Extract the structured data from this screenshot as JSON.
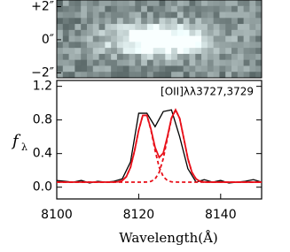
{
  "chart_data": {
    "type": "line",
    "annotation": "[OII]λλ3727,3729",
    "xlabel": "Wavelength(Å)",
    "ylabel": "f",
    "ylabel_sub": "λ",
    "xlim": [
      8100,
      8150
    ],
    "xticks": [
      8100,
      8120,
      8140
    ],
    "ylim": [
      -0.14,
      1.27
    ],
    "yticks": [
      {
        "value": 0,
        "label": "0.0"
      },
      0.4,
      0.8,
      1.2
    ],
    "image_ylim": [
      -2.3,
      2.4
    ],
    "image_yticks": [
      {
        "value": 2,
        "label": "+2″"
      },
      {
        "value": 0,
        "label": "0″"
      },
      {
        "value": -2,
        "label": "−2″"
      }
    ],
    "series": [
      {
        "color": "#000000",
        "style": "solid",
        "x": [
          8100,
          8102,
          8104,
          8106,
          8108,
          8110,
          8112,
          8114,
          8116,
          8118,
          8120,
          8122,
          8124,
          8126,
          8128,
          8130,
          8132,
          8134,
          8136,
          8138,
          8140,
          8142,
          8144,
          8146,
          8148,
          8150
        ],
        "values": [
          0.08,
          0.07,
          0.06,
          0.08,
          0.05,
          0.07,
          0.06,
          0.07,
          0.1,
          0.3,
          0.88,
          0.88,
          0.72,
          0.9,
          0.92,
          0.6,
          0.22,
          0.06,
          0.09,
          0.06,
          0.08,
          0.05,
          0.06,
          0.07,
          0.09,
          0.06
        ]
      },
      {
        "color": "#e8101a",
        "style": "solid",
        "x": [
          8100,
          8112,
          8113,
          8114,
          8115,
          8116,
          8117,
          8118,
          8119,
          8120,
          8121,
          8122,
          8123,
          8124,
          8125,
          8126,
          8127,
          8128,
          8129,
          8130,
          8131,
          8132,
          8133,
          8134,
          8135,
          8136,
          8137,
          8138,
          8139,
          8140,
          8150
        ],
        "values": [
          0.06,
          0.06,
          0.06,
          0.061,
          0.064,
          0.079,
          0.126,
          0.237,
          0.436,
          0.679,
          0.855,
          0.857,
          0.688,
          0.474,
          0.353,
          0.406,
          0.601,
          0.823,
          0.921,
          0.819,
          0.582,
          0.34,
          0.176,
          0.098,
          0.069,
          0.062,
          0.06,
          0.06,
          0.06,
          0.06,
          0.06
        ]
      },
      {
        "color": "#e8101a",
        "style": "dashed",
        "x": [
          8100,
          8112,
          8113,
          8114,
          8115,
          8116,
          8117,
          8118,
          8119,
          8120,
          8121,
          8122,
          8123,
          8124,
          8125,
          8126,
          8127,
          8128,
          8129,
          8130,
          8131,
          8132,
          8133,
          8134,
          8135,
          8136,
          8137,
          8138,
          8139,
          8140,
          8150
        ],
        "values": [
          0.06,
          0.06,
          0.06,
          0.061,
          0.064,
          0.079,
          0.126,
          0.237,
          0.436,
          0.679,
          0.855,
          0.855,
          0.679,
          0.436,
          0.237,
          0.126,
          0.079,
          0.064,
          0.061,
          0.06,
          0.06,
          0.06,
          0.06,
          0.06,
          0.06,
          0.06,
          0.06,
          0.06,
          0.06,
          0.06,
          0.06
        ]
      },
      {
        "color": "#e8101a",
        "style": "dashed",
        "x": [
          8100,
          8112,
          8113,
          8114,
          8115,
          8116,
          8117,
          8118,
          8119,
          8120,
          8121,
          8122,
          8123,
          8124,
          8125,
          8126,
          8127,
          8128,
          8129,
          8130,
          8131,
          8132,
          8133,
          8134,
          8135,
          8136,
          8137,
          8138,
          8139,
          8140,
          8150
        ],
        "values": [
          0.06,
          0.06,
          0.06,
          0.06,
          0.06,
          0.06,
          0.06,
          0.06,
          0.06,
          0.06,
          0.06,
          0.062,
          0.069,
          0.098,
          0.176,
          0.34,
          0.582,
          0.819,
          0.92,
          0.819,
          0.582,
          0.34,
          0.176,
          0.098,
          0.069,
          0.062,
          0.06,
          0.06,
          0.06,
          0.06,
          0.06
        ]
      }
    ]
  }
}
